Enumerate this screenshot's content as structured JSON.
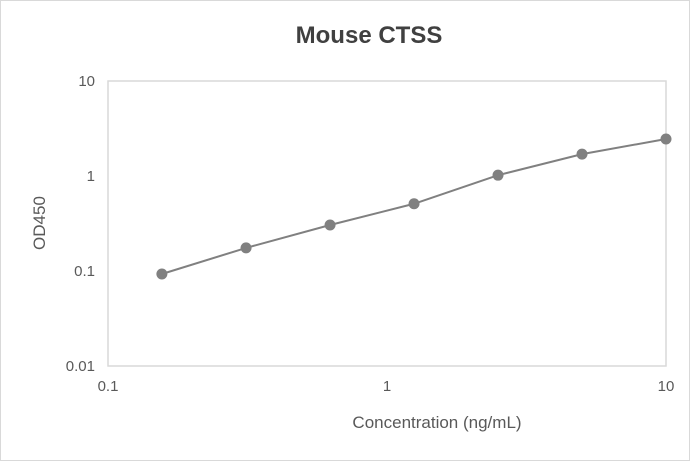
{
  "chart_data": {
    "type": "line",
    "title": "Mouse CTSS",
    "xlabel": "Concentration (ng/mL)",
    "ylabel": "OD450",
    "xscale": "log",
    "yscale": "log",
    "xlim": [
      0.1,
      10
    ],
    "ylim": [
      0.01,
      10
    ],
    "xticks": [
      "0.1",
      "1",
      "10"
    ],
    "yticks": [
      "0.01",
      "0.1",
      "1",
      "10"
    ],
    "grid": false,
    "legend": "none",
    "series": [
      {
        "x": [
          0.156,
          0.3125,
          0.625,
          1.25,
          2.5,
          5,
          10
        ],
        "y": [
          0.093,
          0.175,
          0.305,
          0.51,
          1.02,
          1.7,
          2.45
        ],
        "color": "#808080"
      }
    ]
  }
}
